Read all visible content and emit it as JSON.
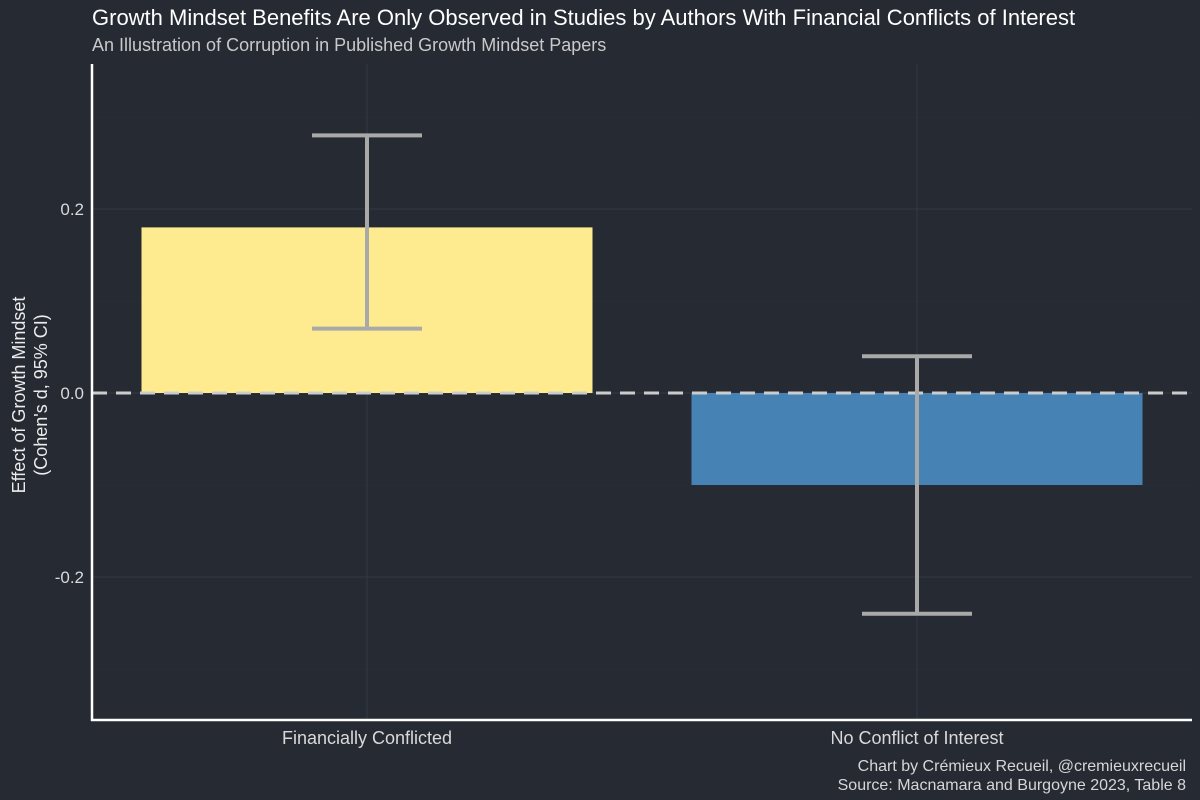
{
  "chart_data": {
    "type": "bar",
    "title": "Growth Mindset Benefits Are Only Observed in Studies by Authors With Financial Conflicts of Interest",
    "subtitle": "An Illustration of Corruption in Published Growth Mindset Papers",
    "ylabel_line1": "Effect of Growth Mindset",
    "ylabel_line2": "(Cohen's d, 95% CI)",
    "xlabel": "",
    "categories": [
      "Financially Conflicted",
      "No Conflict of Interest"
    ],
    "values": [
      0.18,
      -0.1
    ],
    "ci_lower": [
      0.07,
      -0.24
    ],
    "ci_upper": [
      0.28,
      0.04
    ],
    "colors": [
      "#ffeb8f",
      "#4682b4"
    ],
    "ylim": [
      -0.36,
      0.36
    ],
    "yticks": [
      -0.2,
      0.0,
      0.2
    ],
    "ytick_labels": [
      "-0.2",
      "0.0",
      "0.2"
    ],
    "reference_line": {
      "y": 0,
      "style": "dashed",
      "color": "#cccccc"
    },
    "grid": true,
    "legend": "none"
  },
  "credit": {
    "line1": "Chart by Crémieux Recueil, @cremieuxrecueil",
    "line2": "Source: Macnamara and Burgoyne 2023, Table 8"
  }
}
